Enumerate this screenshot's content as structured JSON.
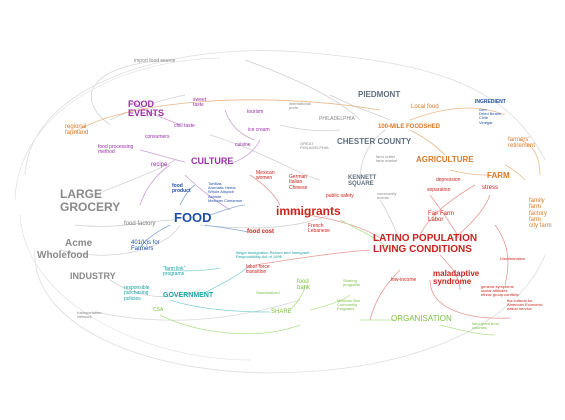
{
  "colors": {
    "gray": "#8a8a8a",
    "purple": "#9b2fa8",
    "blue": "#1f4ea6",
    "red": "#c8231e",
    "orange": "#d87a2a",
    "green": "#7cc043",
    "teal": "#19a3a6",
    "slate": "#5f6f7f"
  },
  "labels": {
    "import_food_source": "import food source",
    "food_events": "FOOD\nEVENTS",
    "sweet_taste": "sweet\ntaste",
    "chili_taste": "chili taste",
    "tourism": "tourism",
    "international_ports": "international\nports",
    "piedmont": "PIEDMONT",
    "ingredient": "INGREDIENT",
    "ingredient_items": "corn\nDried Beans\nChile\nVinegar",
    "local_food": "Local food",
    "philadelphia": "PHILADELPHIA",
    "regional_farmland": "regional\nfarmland",
    "consumers": "consumers",
    "ice_cream": "ice cream",
    "foodshed": "100-MILE FOODSHED",
    "farmers_retirement": "farmers'\nretirement",
    "food_processing_method": "food processing\nmethod",
    "great_philadelphia": "GREAT\nPHILADELPHIA",
    "chester_county": "CHESTER COUNTY",
    "cuisine": "cuisine",
    "farm_outlet": "farm outlet\nfarm market",
    "recipe": "recipe",
    "culture": "CULTURE",
    "agriculture": "AGRICULTURE",
    "mexican_women": "Mexican\nwomen",
    "german_italian_chinese": "German\nItalian\nChinese",
    "kennett_square": "KENNETT\nSQUARE",
    "farm": "FARM",
    "depression": "depression",
    "large_grocery": "LARGE\nGROCERY",
    "food_product": "food\nproduct",
    "ingredient_list": "Tortillas\nAromatic Herbs\nWhole Allspice\nAchiote\nMexican Cinnamon",
    "separation": "separation",
    "stress": "stress",
    "public_safety": "public safety",
    "community_events": "community\nevents",
    "food_factory": "food factory",
    "food": "FOOD",
    "immigrants": "immigrants",
    "fair_farm_labor": "Fair Farm\nLabor",
    "farm_types": "family\nfarm\nfactory\nfarm\ncity farm",
    "food_cost": "food cost",
    "french_lebanese": "French\nLebanese",
    "acme": "Acme",
    "wholefood": "Wholefood",
    "kits_for_farmers": "401(k)s for\nFarmers",
    "latino_conditions": "LATINO POPULATION\nLIVING CONDITIONS",
    "discrimination": "Discrimination",
    "illegal_immigration_act": "Illegal Immigration Reform and Immigrant\nResponsibility Act of 1996",
    "industry": "INDUSTRY",
    "farm_link": "\"farm link\"\nprograms",
    "labor_force": "labor force\ntransition",
    "low_income": "low-income",
    "maladaptive_syndrome": "maladaptive\nsyndrome",
    "food_bank": "food\nbank",
    "sharing_program": "Sharing\nprograms",
    "responsible_purchasing": "responsible\npurchasing\npolicies",
    "government": "GOVERNMENT",
    "standardized": "Standardized",
    "general_symptoms": "general symptoms\nsocial attitudes\nethnic group conflicts",
    "cultural_program": "the cultural for\nAmerican Economic\nnation service",
    "transportation_network": "transportation\nNetwork",
    "csa": "CSA",
    "share": "SHARE",
    "mexican_war": "Mexican War\nCommunity\nPrograms",
    "organisation": "ORGANISATION",
    "land_grant": "land grant from\ncolonies"
  }
}
